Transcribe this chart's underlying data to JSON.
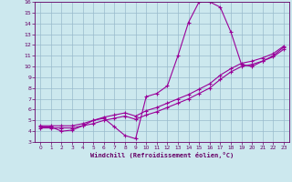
{
  "xlabel": "Windchill (Refroidissement éolien,°C)",
  "background_color": "#cce8ee",
  "line_color": "#990099",
  "grid_color": "#99bbcc",
  "axis_color": "#660066",
  "xlim": [
    -0.5,
    23.5
  ],
  "ylim": [
    3,
    16
  ],
  "xticks": [
    0,
    1,
    2,
    3,
    4,
    5,
    6,
    7,
    8,
    9,
    10,
    11,
    12,
    13,
    14,
    15,
    16,
    17,
    18,
    19,
    20,
    21,
    22,
    23
  ],
  "yticks": [
    3,
    4,
    5,
    6,
    7,
    8,
    9,
    10,
    11,
    12,
    13,
    14,
    15,
    16
  ],
  "line1_x": [
    0,
    1,
    2,
    3,
    4,
    5,
    6,
    7,
    8,
    9,
    10,
    11,
    12,
    13,
    14,
    15,
    16,
    17,
    18,
    19,
    20,
    21,
    22,
    23
  ],
  "line1_y": [
    4.4,
    4.4,
    4.0,
    4.1,
    4.5,
    5.0,
    5.2,
    4.4,
    3.6,
    3.3,
    7.2,
    7.5,
    8.2,
    11.0,
    14.1,
    16.0,
    16.0,
    15.5,
    13.2,
    10.2,
    10.0,
    10.5,
    11.0,
    11.8
  ],
  "line2_x": [
    0,
    1,
    2,
    3,
    4,
    5,
    6,
    7,
    8,
    9,
    10,
    11,
    12,
    13,
    14,
    15,
    16,
    17,
    18,
    19,
    20,
    21,
    22,
    23
  ],
  "line2_y": [
    4.3,
    4.3,
    4.3,
    4.3,
    4.5,
    4.7,
    5.0,
    5.2,
    5.4,
    5.1,
    5.5,
    5.8,
    6.2,
    6.6,
    7.0,
    7.5,
    8.0,
    8.8,
    9.5,
    10.0,
    10.2,
    10.5,
    10.9,
    11.6
  ],
  "line3_x": [
    0,
    1,
    2,
    3,
    4,
    5,
    6,
    7,
    8,
    9,
    10,
    11,
    12,
    13,
    14,
    15,
    16,
    17,
    18,
    19,
    20,
    21,
    22,
    23
  ],
  "line3_y": [
    4.5,
    4.5,
    4.5,
    4.5,
    4.7,
    5.0,
    5.3,
    5.5,
    5.7,
    5.4,
    5.9,
    6.2,
    6.6,
    7.0,
    7.4,
    7.9,
    8.4,
    9.2,
    9.8,
    10.3,
    10.5,
    10.8,
    11.2,
    11.9
  ]
}
